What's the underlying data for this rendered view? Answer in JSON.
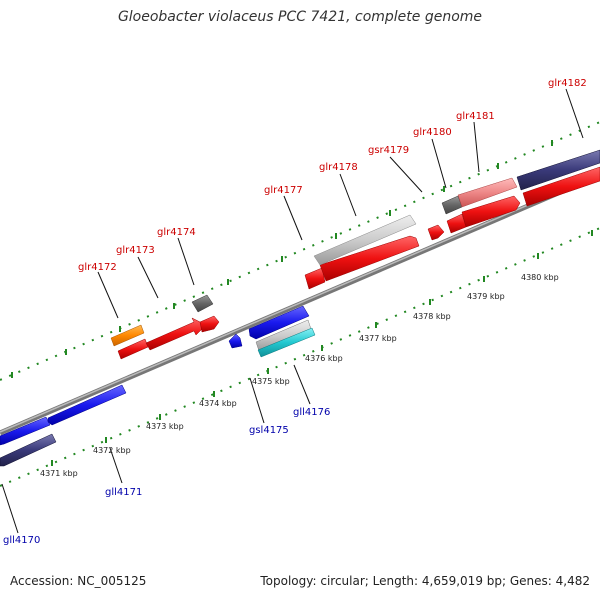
{
  "title": "Gloeobacter violaceus PCC 7421, complete genome",
  "footer": {
    "accession": "Accession: NC_005125",
    "genome_info": "Topology: circular; Length: 4,659,019 bp; Genes: 4,482"
  },
  "scale_ticks": [
    {
      "id": "4371",
      "label": "4371 kbp"
    },
    {
      "id": "4372",
      "label": "4372 kbp"
    },
    {
      "id": "4373",
      "label": "4373 kbp"
    },
    {
      "id": "4374",
      "label": "4374 kbp"
    },
    {
      "id": "4375",
      "label": "4375 kbp"
    },
    {
      "id": "4376",
      "label": "4376 kbp"
    },
    {
      "id": "4377",
      "label": "4377 kbp"
    },
    {
      "id": "4378",
      "label": "4378 kbp"
    },
    {
      "id": "4379",
      "label": "4379 kbp"
    },
    {
      "id": "4380",
      "label": "4380 kbp"
    }
  ],
  "genes": {
    "forward": [
      "glr4172",
      "glr4173",
      "glr4174",
      "glr4177",
      "glr4178",
      "gsr4179",
      "glr4180",
      "glr4181",
      "glr4182"
    ],
    "reverse": [
      "gll4170",
      "gll4171",
      "gsl4175",
      "gll4176"
    ]
  },
  "colors": {
    "forward_label": "#cc0000",
    "reverse_label": "#0000aa",
    "forward_gene": "#ee1111",
    "reverse_gene": "#1a1aee",
    "hypothetical": "#3a3a7a",
    "pseudo": "#666666",
    "rna": "#ff8800",
    "light_gene": "#cccccc",
    "pink_gene": "#ee8888",
    "teal_gene": "#22c8d0",
    "backbone": "#888888",
    "tick_dots": "#228822"
  }
}
